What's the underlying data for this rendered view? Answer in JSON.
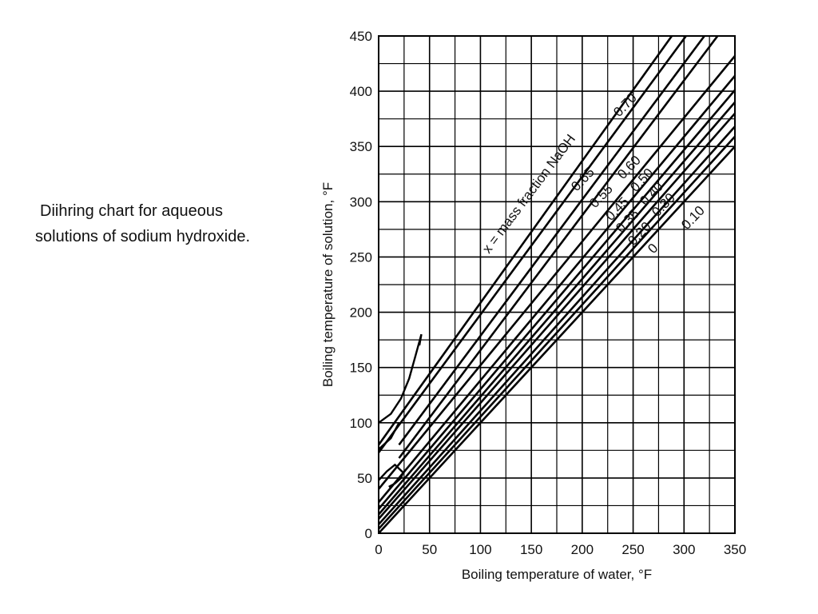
{
  "caption": {
    "line1": "Diihring chart for aqueous",
    "line2": "solutions of sodium hydroxide."
  },
  "chart_data": {
    "type": "line",
    "xlabel": "Boiling temperature of water, °F",
    "ylabel": "Boiling temperature of solution, °F",
    "xlim": [
      0,
      350
    ],
    "ylim": [
      0,
      450
    ],
    "x_ticks": [
      "0",
      "50",
      "100",
      "150",
      "200",
      "250",
      "300",
      "350"
    ],
    "y_ticks": [
      "0",
      "50",
      "100",
      "150",
      "200",
      "250",
      "300",
      "350",
      "400",
      "450"
    ],
    "grid": true,
    "annotation": "x = mass fraction NaOH",
    "series": [
      {
        "name": "0",
        "points": [
          [
            0,
            0
          ],
          [
            350,
            350
          ]
        ]
      },
      {
        "name": "0.10",
        "points": [
          [
            0,
            4
          ],
          [
            350,
            359
          ]
        ]
      },
      {
        "name": "0.20",
        "points": [
          [
            0,
            8
          ],
          [
            350,
            368
          ]
        ]
      },
      {
        "name": "0.30",
        "points": [
          [
            0,
            13
          ],
          [
            350,
            380
          ]
        ]
      },
      {
        "name": "0.35",
        "points": [
          [
            0,
            17
          ],
          [
            350,
            390
          ]
        ]
      },
      {
        "name": "0.40",
        "points": [
          [
            0,
            22
          ],
          [
            350,
            401
          ]
        ]
      },
      {
        "name": "0.45",
        "points": [
          [
            0,
            28
          ],
          [
            350,
            414
          ]
        ]
      },
      {
        "name": "0.50",
        "points": [
          [
            0,
            40
          ],
          [
            350,
            432
          ]
        ]
      },
      {
        "name": "0.55",
        "points": [
          [
            20,
            68
          ],
          [
            333,
            450
          ]
        ]
      },
      {
        "name": "0.60",
        "points": [
          [
            20,
            80
          ],
          [
            320,
            450
          ]
        ]
      },
      {
        "name": "0.65",
        "points": [
          [
            0,
            73
          ],
          [
            302,
            450
          ]
        ]
      },
      {
        "name": "0.70",
        "points": [
          [
            0,
            80
          ],
          [
            288,
            450
          ]
        ]
      }
    ],
    "curve_labels": [
      "0",
      "0.10",
      "0.20",
      "0.30",
      "0.35",
      "0.40",
      "0.45",
      "0.50",
      "0.55",
      "0.60",
      "0.65",
      "0.70"
    ]
  }
}
